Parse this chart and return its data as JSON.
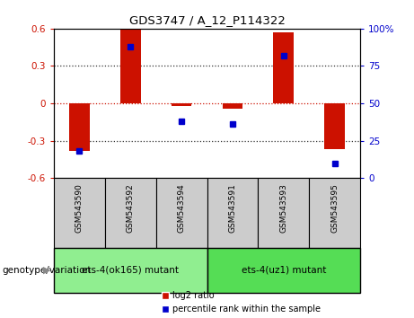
{
  "title": "GDS3747 / A_12_P114322",
  "samples": [
    "GSM543590",
    "GSM543592",
    "GSM543594",
    "GSM543591",
    "GSM543593",
    "GSM543595"
  ],
  "log2_ratio": [
    -0.38,
    0.6,
    -0.02,
    -0.04,
    0.57,
    -0.37
  ],
  "percentile_rank": [
    18,
    88,
    38,
    36,
    82,
    10
  ],
  "groups": [
    {
      "label": "ets-4(ok165) mutant",
      "indices": [
        0,
        1,
        2
      ],
      "color": "#90EE90"
    },
    {
      "label": "ets-4(uz1) mutant",
      "indices": [
        3,
        4,
        5
      ],
      "color": "#55DD55"
    }
  ],
  "ylim_left": [
    -0.6,
    0.6
  ],
  "ylim_right": [
    0,
    100
  ],
  "yticks_left": [
    -0.6,
    -0.3,
    0.0,
    0.3,
    0.6
  ],
  "yticks_right": [
    0,
    25,
    50,
    75,
    100
  ],
  "bar_color": "#CC1100",
  "dot_color": "#0000CC",
  "sample_bg_color": "#CCCCCC",
  "plot_bg": "#FFFFFF",
  "legend_red_label": "log2 ratio",
  "legend_blue_label": "percentile rank within the sample",
  "genotype_label": "genotype/variation"
}
